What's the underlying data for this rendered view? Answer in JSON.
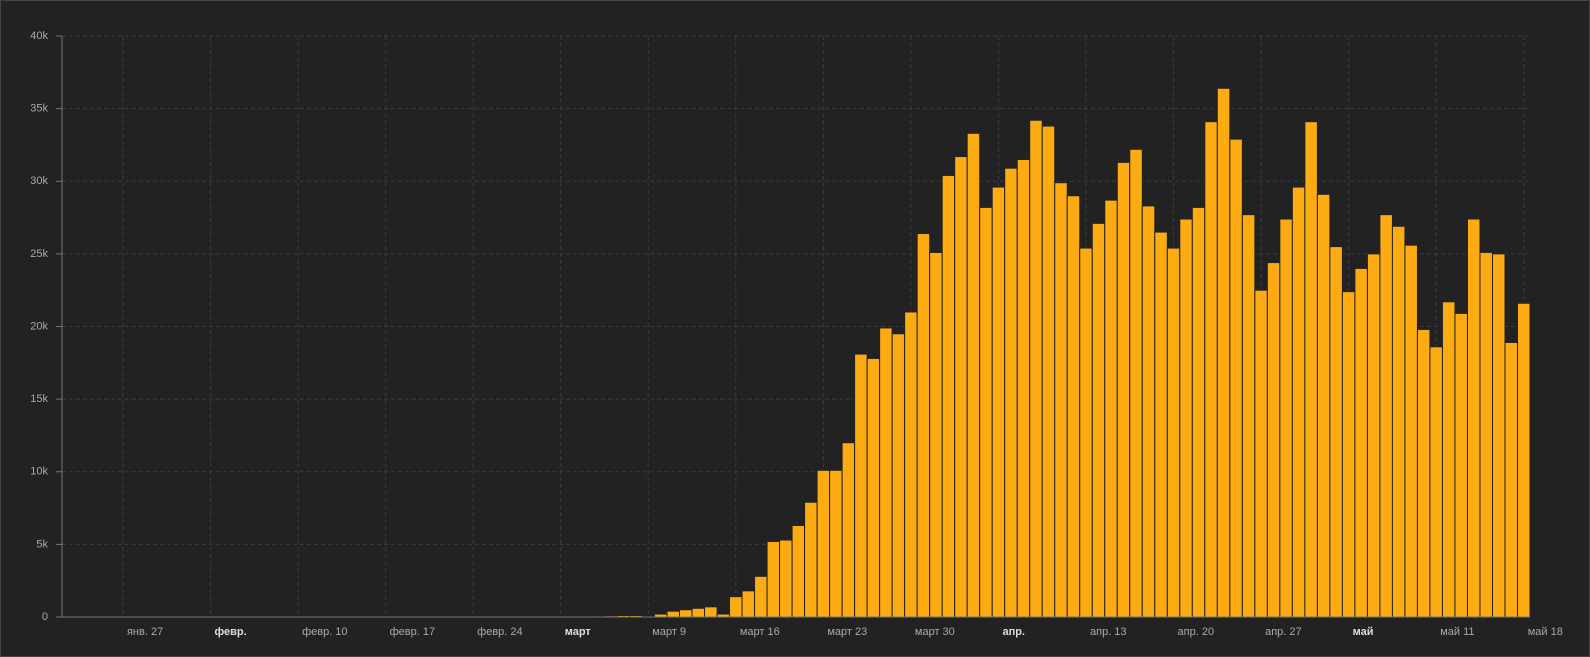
{
  "chart_data": {
    "type": "bar",
    "color": "#fcac12",
    "categories": [
      null,
      null,
      null,
      null,
      "янв. 27",
      null,
      null,
      null,
      null,
      null,
      null,
      "февр.",
      null,
      null,
      null,
      null,
      null,
      null,
      "февр. 10",
      null,
      null,
      null,
      null,
      null,
      null,
      "февр. 17",
      null,
      null,
      null,
      null,
      null,
      null,
      "февр. 24",
      null,
      null,
      null,
      null,
      null,
      null,
      "март",
      null,
      null,
      null,
      null,
      null,
      null,
      "март 9",
      null,
      null,
      null,
      null,
      null,
      null,
      "март 16",
      null,
      null,
      null,
      null,
      null,
      null,
      "март 23",
      null,
      null,
      null,
      null,
      null,
      null,
      "март 30",
      null,
      null,
      null,
      null,
      null,
      null,
      "апр.",
      null,
      null,
      null,
      null,
      null,
      null,
      "апр. 13",
      null,
      null,
      null,
      null,
      null,
      null,
      "апр. 20",
      null,
      null,
      null,
      null,
      null,
      null,
      "апр. 27",
      null,
      null,
      null,
      null,
      null,
      null,
      "май",
      null,
      null,
      null,
      null,
      null,
      null,
      "май 11",
      null,
      null,
      null,
      null,
      null,
      null,
      "май 18"
    ],
    "values": [
      0,
      0,
      0,
      0,
      0,
      0,
      0,
      0,
      0,
      0,
      0,
      0,
      0,
      0,
      0,
      0,
      0,
      0,
      0,
      0,
      0,
      0,
      0,
      0,
      0,
      0,
      0,
      0,
      0,
      0,
      0,
      0,
      0,
      0,
      0,
      0,
      0,
      0,
      0,
      20,
      20,
      30,
      70,
      80,
      100,
      100,
      50,
      200,
      400,
      500,
      600,
      700,
      200,
      1400,
      1800,
      2800,
      5200,
      5300,
      6300,
      7900,
      10100,
      10100,
      12000,
      18100,
      17800,
      19900,
      19500,
      21000,
      26400,
      25100,
      30400,
      31700,
      33300,
      28200,
      29600,
      30900,
      31500,
      34200,
      33800,
      29900,
      29000,
      25400,
      27100,
      28700,
      31300,
      32200,
      28300,
      26500,
      25400,
      27400,
      28200,
      34100,
      36400,
      32900,
      27700,
      22500,
      24400,
      27400,
      29600,
      34100,
      29100,
      25500,
      22400,
      24000,
      25000,
      27700,
      26900,
      25600,
      19800,
      18600,
      21700,
      20900,
      27400,
      25100,
      25000,
      18900,
      21600
    ],
    "ylim": [
      0,
      40000
    ],
    "yticks": [
      0,
      {
        "value": 5000,
        "label": "5k"
      },
      {
        "value": 10000,
        "label": "10k"
      },
      {
        "value": 15000,
        "label": "15k"
      },
      {
        "value": 20000,
        "label": "20k"
      },
      {
        "value": 25000,
        "label": "25k"
      },
      {
        "value": 30000,
        "label": "30k"
      },
      {
        "value": 35000,
        "label": "35k"
      },
      {
        "value": 40000,
        "label": "40k"
      }
    ],
    "grid": true
  }
}
